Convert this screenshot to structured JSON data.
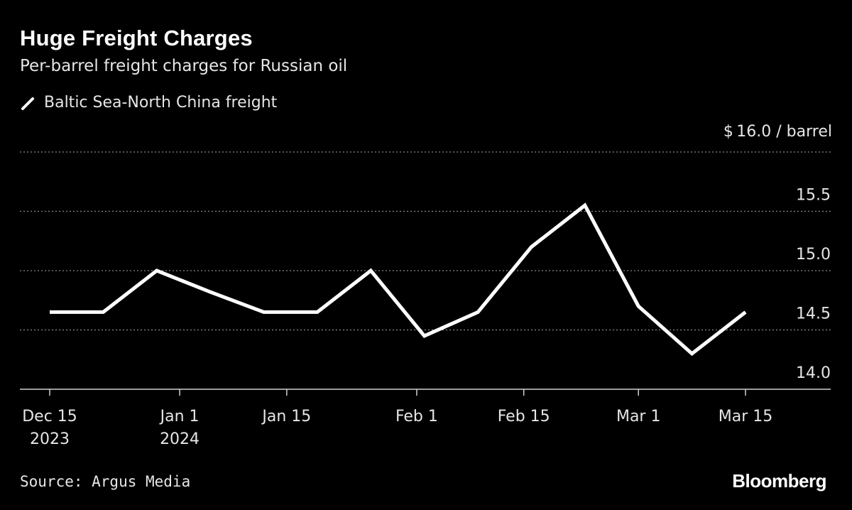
{
  "header": {
    "title": "Huge Freight Charges",
    "subtitle": "Per-barrel freight charges for Russian oil"
  },
  "legend": {
    "label": "Baltic Sea-North China freight"
  },
  "unit_label": "$ 16.0 / barrel",
  "footer": {
    "source": "Source: Argus Media",
    "brand": "Bloomberg"
  },
  "colors": {
    "background": "#000000",
    "line": "#ffffff",
    "grid": "#8a8a8a",
    "axis": "#cfcfcf"
  },
  "chart_data": {
    "type": "line",
    "title": "Huge Freight Charges",
    "subtitle": "Per-barrel freight charges for Russian oil",
    "ylabel": "$ / barrel",
    "ylim": [
      14.0,
      16.0
    ],
    "y_ticks": [
      14.0,
      14.5,
      15.0,
      15.5,
      16.0
    ],
    "y_tick_labels": [
      "14.0",
      "14.5",
      "15.0",
      "15.5",
      "$ 16.0 / barrel"
    ],
    "y_axis_side": "right",
    "grid": true,
    "legend_position": "top-left",
    "x_ticks": [
      {
        "date": "2023-12-15",
        "label": [
          "Dec 15",
          "2023"
        ]
      },
      {
        "date": "2024-01-01",
        "label": [
          "Jan 1",
          "2024"
        ]
      },
      {
        "date": "2024-01-15",
        "label": [
          "Jan 15"
        ]
      },
      {
        "date": "2024-02-01",
        "label": [
          "Feb 1"
        ]
      },
      {
        "date": "2024-02-15",
        "label": [
          "Feb 15"
        ]
      },
      {
        "date": "2024-03-01",
        "label": [
          "Mar 1"
        ]
      },
      {
        "date": "2024-03-15",
        "label": [
          "Mar 15"
        ]
      }
    ],
    "series": [
      {
        "name": "Baltic Sea-North China freight",
        "color": "#ffffff",
        "points": [
          {
            "x": "2023-12-15",
            "y": 14.65
          },
          {
            "x": "2023-12-22",
            "y": 14.65
          },
          {
            "x": "2023-12-29",
            "y": 15.0
          },
          {
            "x": "2024-01-05",
            "y": 14.82
          },
          {
            "x": "2024-01-12",
            "y": 14.65
          },
          {
            "x": "2024-01-19",
            "y": 14.65
          },
          {
            "x": "2024-01-26",
            "y": 15.0
          },
          {
            "x": "2024-02-02",
            "y": 14.45
          },
          {
            "x": "2024-02-09",
            "y": 14.65
          },
          {
            "x": "2024-02-16",
            "y": 15.2
          },
          {
            "x": "2024-02-23",
            "y": 15.55
          },
          {
            "x": "2024-03-01",
            "y": 14.7
          },
          {
            "x": "2024-03-08",
            "y": 14.3
          },
          {
            "x": "2024-03-15",
            "y": 14.65
          }
        ]
      }
    ]
  }
}
